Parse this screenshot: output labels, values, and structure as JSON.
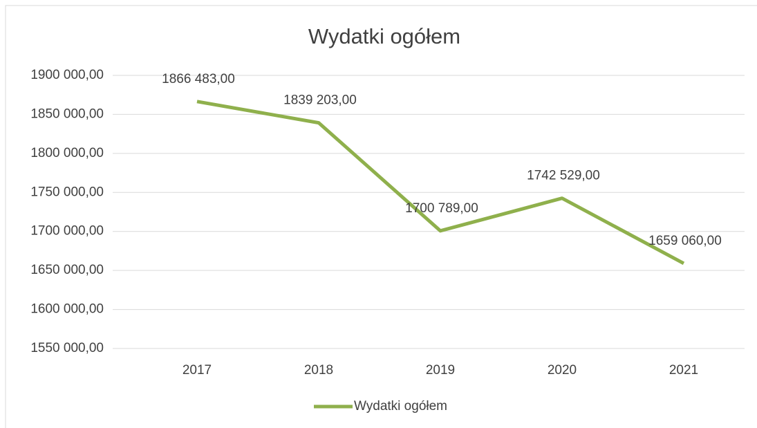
{
  "chart_data": {
    "type": "line",
    "title": "Wydatki ogółem",
    "categories": [
      "2017",
      "2018",
      "2019",
      "2020",
      "2021"
    ],
    "series": [
      {
        "name": "Wydatki ogółem",
        "color": "#8fb04c",
        "values": [
          1866483,
          1839203,
          1700789,
          1742529,
          1659060
        ],
        "value_labels": [
          "1866 483,00",
          "1839 203,00",
          "1700 789,00",
          "1742 529,00",
          "1659 060,00"
        ]
      }
    ],
    "ylim": [
      1550000,
      1900000
    ],
    "yticks": [
      {
        "value": 1550000,
        "label": "1550 000,00"
      },
      {
        "value": 1600000,
        "label": "1600 000,00"
      },
      {
        "value": 1650000,
        "label": "1650 000,00"
      },
      {
        "value": 1700000,
        "label": "1700 000,00"
      },
      {
        "value": 1750000,
        "label": "1750 000,00"
      },
      {
        "value": 1800000,
        "label": "1800 000,00"
      },
      {
        "value": 1850000,
        "label": "1850 000,00"
      },
      {
        "value": 1900000,
        "label": "1900 000,00"
      }
    ],
    "grid": true,
    "legend": "bottom"
  }
}
